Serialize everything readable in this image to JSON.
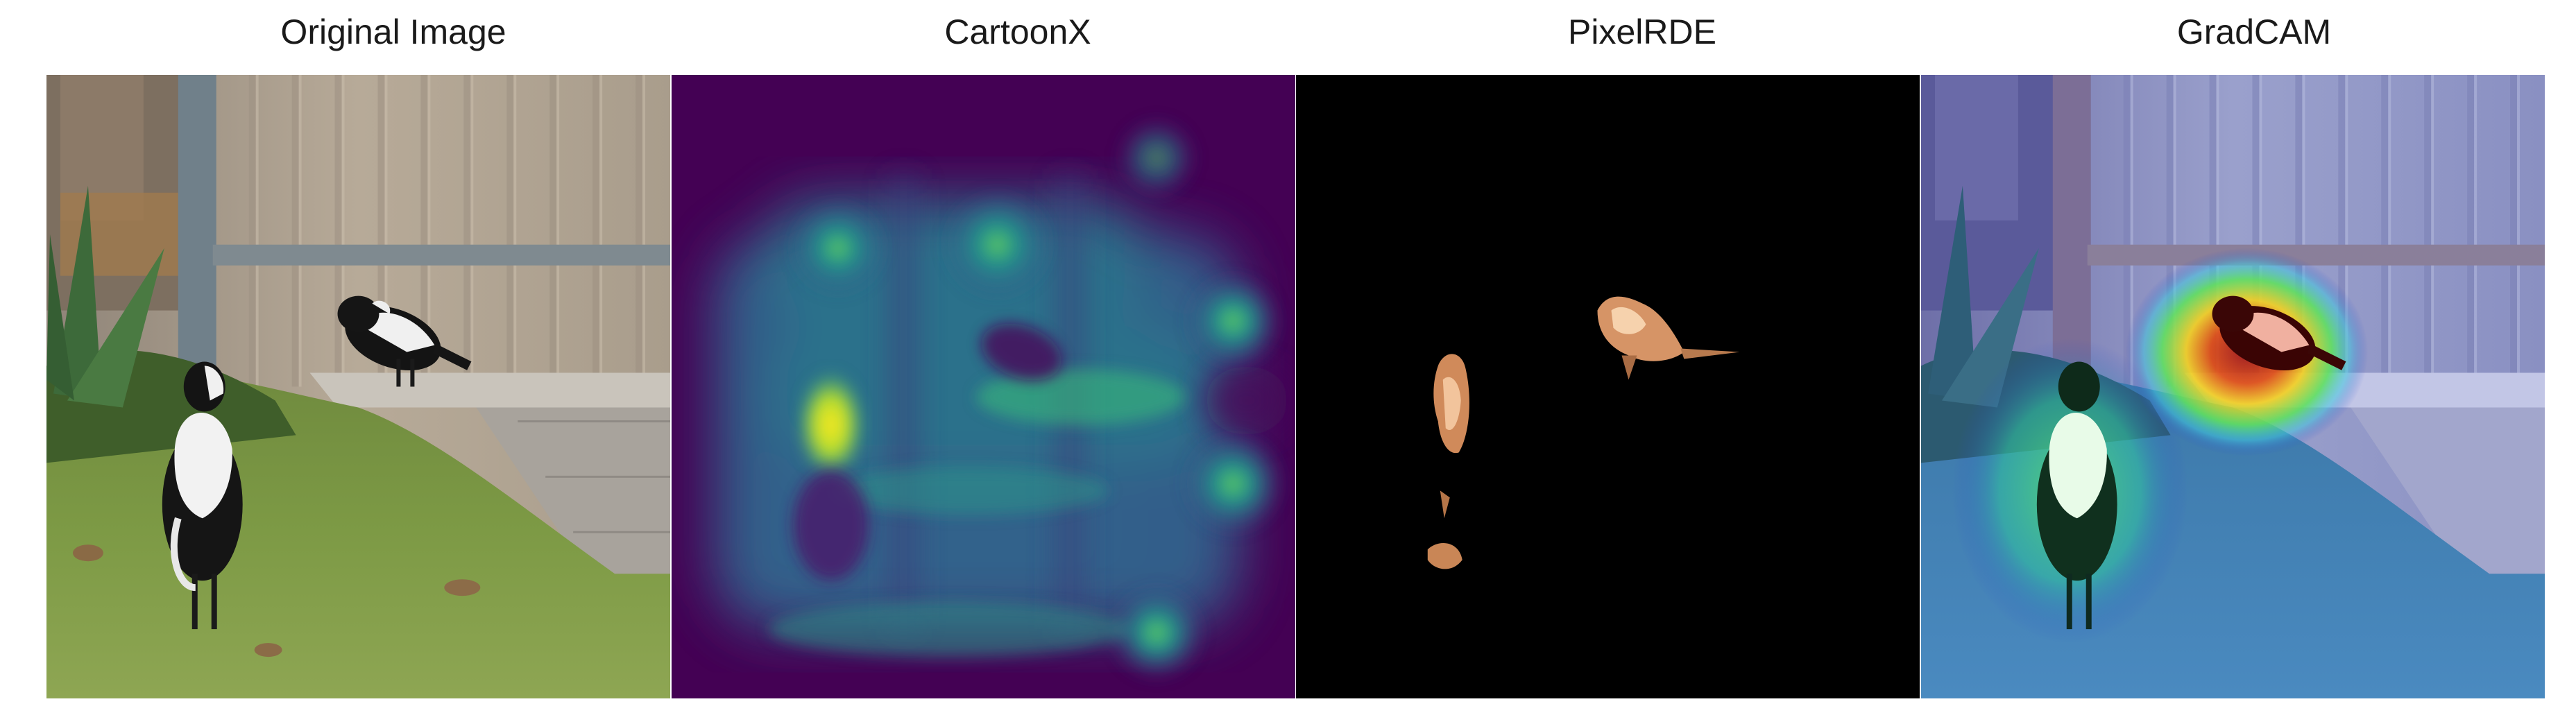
{
  "figure": {
    "panels": [
      {
        "title": "Original Image",
        "icon": "photo-icon"
      },
      {
        "title": "CartoonX",
        "icon": "heatmap-icon"
      },
      {
        "title": "PixelRDE",
        "icon": "mask-icon"
      },
      {
        "title": "GradCAM",
        "icon": "overlay-icon"
      }
    ]
  },
  "colors": {
    "viridis_dark": "#440154",
    "viridis_mid": "#21918c",
    "viridis_bright": "#fde725",
    "pixelrde_background": "#000000",
    "pixelrde_highlight": "#e8a878",
    "gradcam_hot": "#c81e14",
    "gradcam_cool": "#2a44cc"
  }
}
